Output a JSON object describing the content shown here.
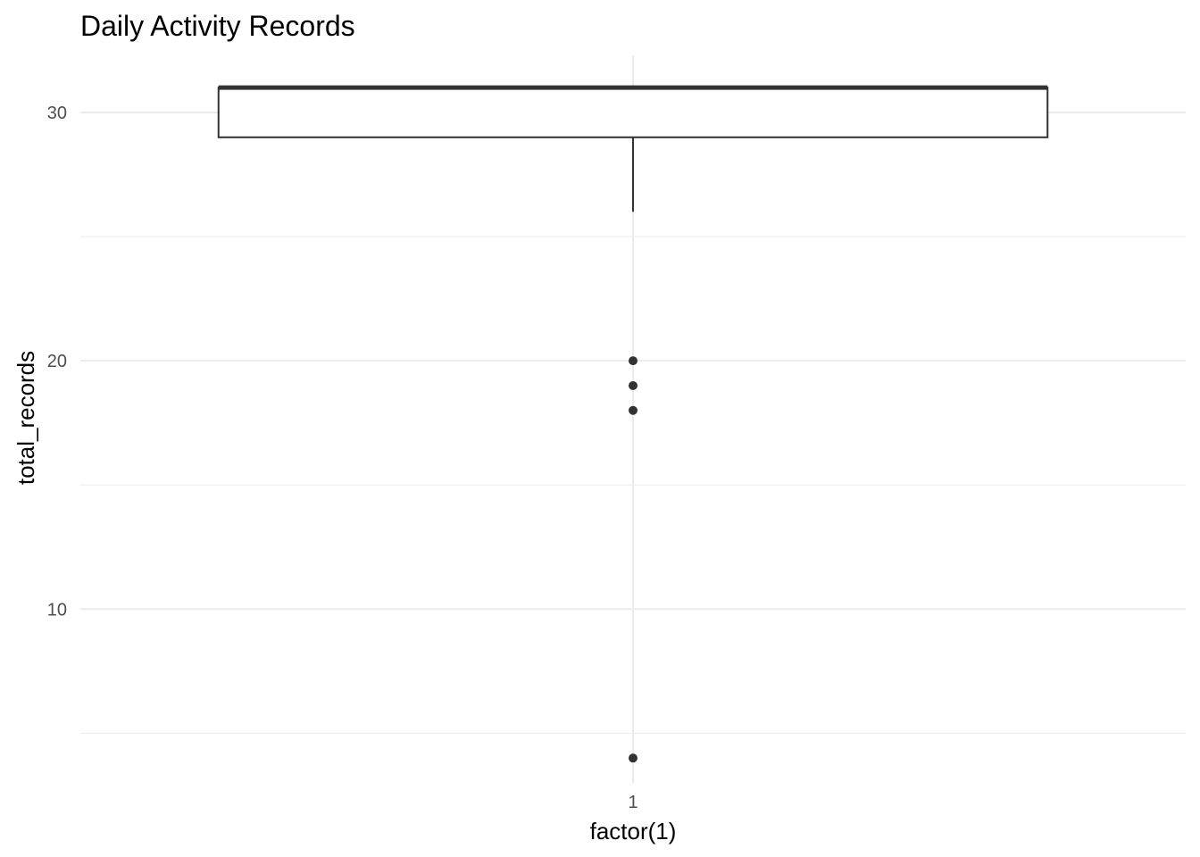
{
  "chart_data": {
    "type": "boxplot",
    "title": "Daily Activity Records",
    "xlabel": "factor(1)",
    "ylabel": "total_records",
    "categories": [
      "1"
    ],
    "boxes": [
      {
        "category": "1",
        "lower_whisker": 26,
        "q1": 29,
        "median": 31,
        "q3": 31,
        "upper_whisker": 31,
        "outliers": [
          20,
          19,
          18,
          4
        ]
      }
    ],
    "y_ticks": [
      10,
      20,
      30
    ],
    "ylim": [
      3.0,
      32.3
    ],
    "grid": true,
    "legend": "none",
    "colors": {
      "box_fill": "#ffffff",
      "box_stroke": "#333333",
      "outlier": "#333333",
      "grid": "#ebebeb",
      "tick_text": "#4d4d4d"
    }
  }
}
